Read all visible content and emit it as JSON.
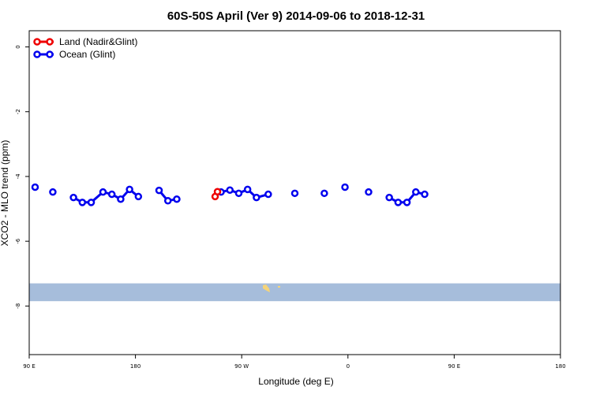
{
  "chart_data": {
    "type": "line",
    "title": "60S-50S April (Ver 9)   2014-09-06 to 2018-12-31",
    "xlabel": "Longitude (deg E)",
    "ylabel": "XCO2 - MLO trend (ppm)",
    "xlim": [
      90,
      450
    ],
    "ylim": [
      -9.5,
      0.5
    ],
    "x_ticks": [
      {
        "value": 90,
        "label": "90 E"
      },
      {
        "value": 180,
        "label": "180"
      },
      {
        "value": 270,
        "label": "90 W"
      },
      {
        "value": 360,
        "label": "0"
      },
      {
        "value": 450,
        "label": "90 E"
      },
      {
        "value": 540,
        "label": "180"
      }
    ],
    "y_ticks": [
      0,
      -2,
      -4,
      -6,
      -8
    ],
    "grid": false,
    "legend_position": "top-left",
    "series": [
      {
        "name": "Land (Nadir&Glint)",
        "color": "#ee0000",
        "segments": [
          [
            [
              247.5,
              -4.62
            ],
            [
              249.5,
              -4.47
            ]
          ]
        ]
      },
      {
        "name": "Ocean (Glint)",
        "color": "#0000ee",
        "segments": [
          [
            [
              95,
              -4.33
            ]
          ],
          [
            [
              110,
              -4.48
            ]
          ],
          [
            [
              127.5,
              -4.65
            ],
            [
              135,
              -4.8
            ],
            [
              142.5,
              -4.8
            ],
            [
              152.5,
              -4.48
            ],
            [
              160,
              -4.55
            ],
            [
              167.5,
              -4.7
            ],
            [
              175,
              -4.4
            ],
            [
              182.5,
              -4.62
            ]
          ],
          [
            [
              200,
              -4.43
            ],
            [
              207.5,
              -4.75
            ],
            [
              215,
              -4.7
            ]
          ],
          [
            [
              252.5,
              -4.48
            ],
            [
              260,
              -4.42
            ],
            [
              267.5,
              -4.52
            ],
            [
              275,
              -4.4
            ],
            [
              282.5,
              -4.65
            ],
            [
              292.5,
              -4.55
            ]
          ],
          [
            [
              315,
              -4.52
            ]
          ],
          [
            [
              340,
              -4.52
            ]
          ],
          [
            [
              357.5,
              -4.33
            ]
          ],
          [
            [
              377.5,
              -4.48
            ]
          ],
          [
            [
              395,
              -4.65
            ],
            [
              402.5,
              -4.8
            ],
            [
              410,
              -4.8
            ],
            [
              417.5,
              -4.48
            ],
            [
              425,
              -4.55
            ]
          ]
        ]
      }
    ],
    "map_band": {
      "y_range": [
        -7.3,
        -7.85
      ],
      "color": "#a6bddb",
      "land_color": "#f5d47a"
    }
  }
}
